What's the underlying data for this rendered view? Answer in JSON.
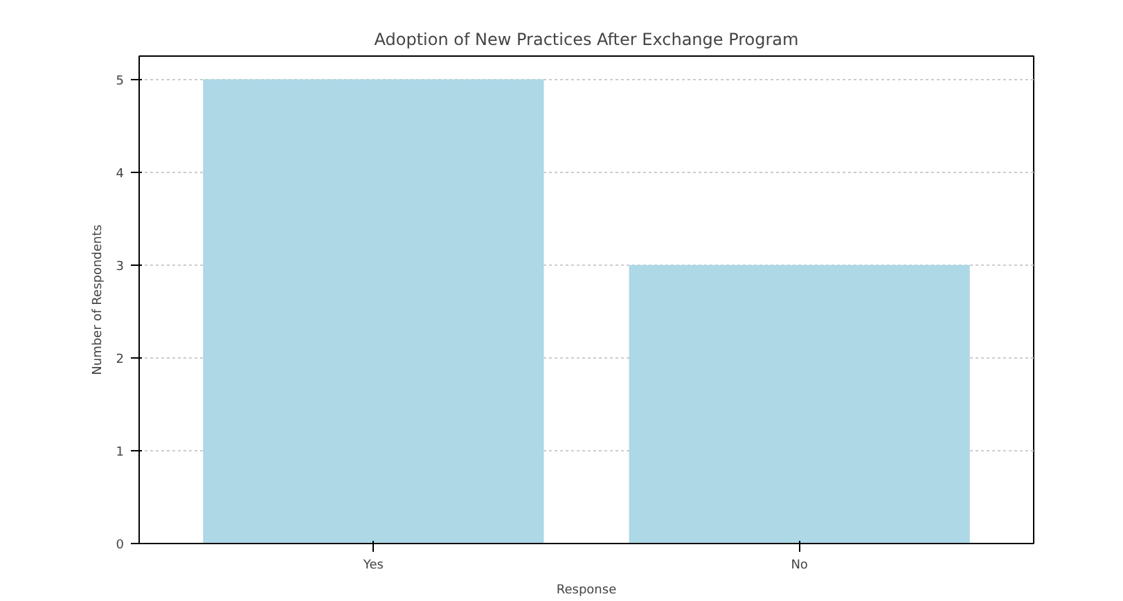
{
  "chart_data": {
    "type": "bar",
    "title": "Adoption of New Practices After Exchange Program",
    "xlabel": "Response",
    "ylabel": "Number of Respondents",
    "categories": [
      "Yes",
      "No"
    ],
    "values": [
      5,
      3
    ],
    "color": "#add8e6",
    "ylim": [
      0,
      5.25
    ],
    "yticks": [
      0,
      1,
      2,
      3,
      4,
      5
    ],
    "grid": "y"
  }
}
